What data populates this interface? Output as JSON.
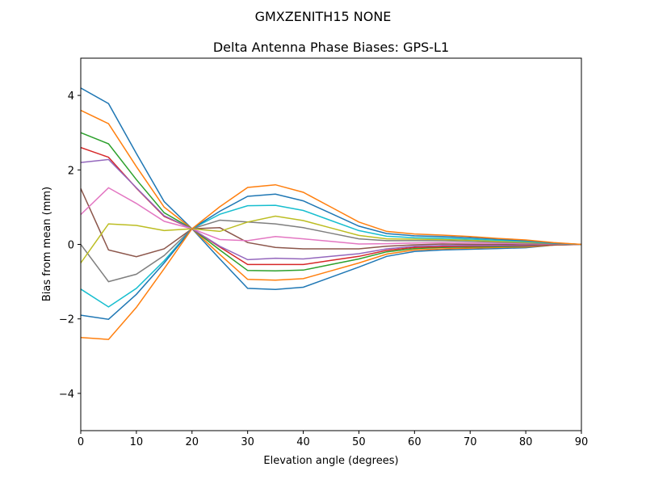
{
  "chart_data": {
    "type": "line",
    "suptitle": "GMXZENITH15     NONE",
    "title": "Delta Antenna Phase Biases: GPS-L1",
    "xlabel": "Elevation angle (degrees)",
    "ylabel": "Bias from mean (mm)",
    "xlim": [
      0,
      90
    ],
    "ylim": [
      -5,
      5
    ],
    "xticks": [
      0,
      10,
      20,
      30,
      40,
      50,
      60,
      70,
      80,
      90
    ],
    "yticks": [
      -4,
      -2,
      0,
      2,
      4
    ],
    "ytick_labels": [
      "−4",
      "−2",
      "0",
      "2",
      "4"
    ],
    "grid": false,
    "x": [
      0,
      5,
      10,
      15,
      20,
      25,
      30,
      35,
      40,
      45,
      50,
      55,
      60,
      65,
      70,
      75,
      80,
      85,
      90
    ],
    "colors": [
      "#1f77b4",
      "#ff7f0e",
      "#2ca02c",
      "#d62728",
      "#9467bd",
      "#8c564b",
      "#e377c2",
      "#7f7f7f",
      "#bcbd22",
      "#17becf"
    ],
    "series": [
      {
        "values": [
          4.2,
          3.78,
          2.44,
          1.15,
          0.42,
          -0.39,
          -1.18,
          -1.21,
          -1.15,
          -0.88,
          -0.61,
          -0.32,
          -0.19,
          -0.15,
          -0.13,
          -0.11,
          -0.09,
          -0.02,
          0
        ]
      },
      {
        "values": [
          3.6,
          3.24,
          2.09,
          1.0,
          0.42,
          -0.27,
          -0.94,
          -0.96,
          -0.92,
          -0.71,
          -0.5,
          -0.26,
          -0.15,
          -0.12,
          -0.1,
          -0.08,
          -0.07,
          -0.02,
          0
        ]
      },
      {
        "values": [
          3.0,
          2.7,
          1.74,
          0.85,
          0.42,
          -0.15,
          -0.7,
          -0.71,
          -0.69,
          -0.54,
          -0.39,
          -0.2,
          -0.11,
          -0.08,
          -0.07,
          -0.06,
          -0.05,
          -0.01,
          0
        ]
      },
      {
        "values": [
          2.6,
          2.34,
          1.51,
          0.75,
          0.42,
          -0.07,
          -0.54,
          -0.54,
          -0.54,
          -0.43,
          -0.32,
          -0.16,
          -0.08,
          -0.06,
          -0.05,
          -0.04,
          -0.04,
          -0.01,
          0
        ]
      },
      {
        "values": [
          2.2,
          2.28,
          1.52,
          0.77,
          0.42,
          -0.05,
          -0.41,
          -0.37,
          -0.39,
          -0.32,
          -0.25,
          -0.12,
          -0.05,
          -0.03,
          -0.03,
          -0.03,
          -0.03,
          0,
          0
        ]
      },
      {
        "values": [
          1.5,
          -0.15,
          -0.33,
          -0.12,
          0.42,
          0.45,
          0.05,
          -0.08,
          -0.12,
          -0.12,
          -0.12,
          -0.05,
          -0.01,
          0.01,
          0,
          0,
          -0.01,
          0,
          0
        ]
      },
      {
        "values": [
          0.8,
          1.52,
          1.1,
          0.62,
          0.42,
          0.13,
          0.1,
          0.21,
          0.15,
          0.08,
          0.01,
          0.02,
          0.04,
          0.05,
          0.04,
          0.03,
          0.02,
          0.01,
          0
        ]
      },
      {
        "values": [
          0,
          -1,
          -0.8,
          -0.3,
          0.42,
          0.65,
          0.6,
          0.55,
          0.45,
          0.3,
          0.15,
          0.1,
          0.1,
          0.1,
          0.08,
          0.06,
          0.04,
          0.02,
          0
        ]
      },
      {
        "values": [
          -0.5,
          0.55,
          0.51,
          0.37,
          0.42,
          0.35,
          0.6,
          0.76,
          0.64,
          0.44,
          0.24,
          0.15,
          0.14,
          0.13,
          0.11,
          0.08,
          0.06,
          0.03,
          0
        ]
      },
      {
        "values": [
          -1.2,
          -1.68,
          -1.18,
          -0.44,
          0.42,
          0.81,
          1.04,
          1.05,
          0.91,
          0.64,
          0.37,
          0.22,
          0.18,
          0.17,
          0.14,
          0.11,
          0.08,
          0.03,
          0
        ]
      },
      {
        "values": [
          -1.9,
          -2.01,
          -1.34,
          -0.5,
          0.42,
          0.89,
          1.29,
          1.35,
          1.17,
          0.83,
          0.49,
          0.29,
          0.23,
          0.21,
          0.18,
          0.14,
          0.1,
          0.04,
          0
        ]
      },
      {
        "values": [
          -2.5,
          -2.55,
          -1.69,
          -0.65,
          0.42,
          1.01,
          1.53,
          1.6,
          1.4,
          1.0,
          0.6,
          0.35,
          0.28,
          0.25,
          0.21,
          0.16,
          0.12,
          0.05,
          0
        ]
      }
    ]
  }
}
